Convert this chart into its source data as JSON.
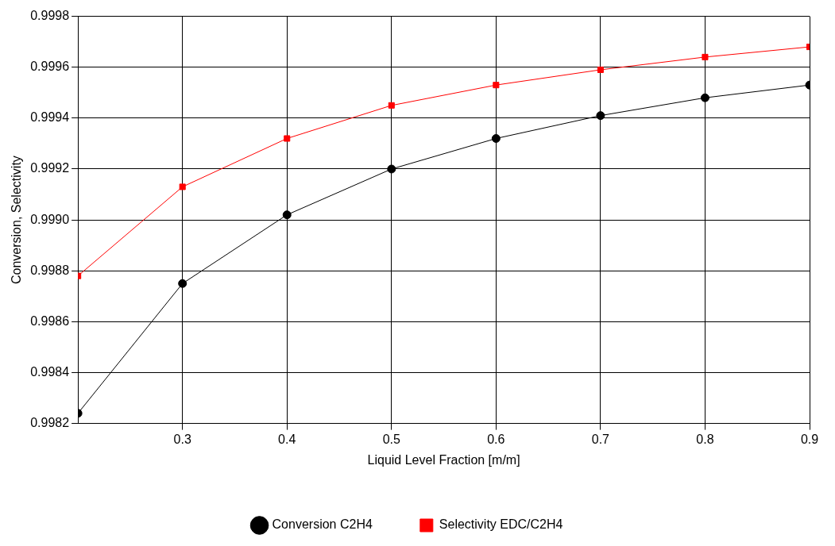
{
  "chart_data": {
    "type": "line",
    "xlabel": "Liquid Level Fraction [m/m]",
    "ylabel": "Conversion, Selectivity",
    "x": [
      0.2,
      0.3,
      0.4,
      0.5,
      0.6,
      0.7,
      0.8,
      0.9
    ],
    "series": [
      {
        "name": "Conversion C2H4",
        "color": "#000000",
        "marker": "circle",
        "values": [
          0.99824,
          0.99875,
          0.99902,
          0.9992,
          0.99932,
          0.99941,
          0.99948,
          0.99953
        ]
      },
      {
        "name": "Selectivity EDC/C2H4",
        "color": "#ff0000",
        "marker": "square",
        "values": [
          0.99878,
          0.99913,
          0.99932,
          0.99945,
          0.99953,
          0.99959,
          0.99964,
          0.99968
        ]
      }
    ],
    "xlim": [
      0.2,
      0.9
    ],
    "xticks": [
      0.3,
      0.4,
      0.5,
      0.6,
      0.7,
      0.8,
      0.9
    ],
    "ylim": [
      0.9982,
      0.9998
    ],
    "yticks": [
      0.9982,
      0.9984,
      0.9986,
      0.9988,
      {
        "value": 0.999,
        "label": "0.9990"
      },
      0.9992,
      0.9994,
      0.9996,
      0.9998
    ],
    "grid": true,
    "legend": "bottom",
    "line_style": "solid"
  }
}
